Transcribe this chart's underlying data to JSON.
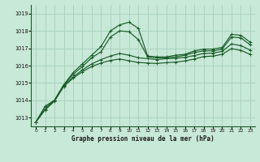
{
  "xlabel": "Graphe pression niveau de la mer (hPa)",
  "background_color": "#c8e8d8",
  "grid_color": "#aad4c0",
  "line_color": "#1a5c28",
  "ylim": [
    1012.5,
    1019.5
  ],
  "xlim": [
    -0.5,
    23.5
  ],
  "yticks": [
    1013,
    1014,
    1015,
    1016,
    1017,
    1018,
    1019
  ],
  "xticks": [
    0,
    1,
    2,
    3,
    4,
    5,
    6,
    7,
    8,
    9,
    10,
    11,
    12,
    13,
    14,
    15,
    16,
    17,
    18,
    19,
    20,
    21,
    22,
    23
  ],
  "series": [
    [
      1012.75,
      1013.65,
      1014.0,
      1014.9,
      1015.6,
      1016.1,
      1016.6,
      1017.1,
      1018.0,
      1018.35,
      1018.5,
      1018.15,
      1016.55,
      1016.5,
      1016.5,
      1016.6,
      1016.65,
      1016.85,
      1016.95,
      1016.95,
      1017.05,
      1017.8,
      1017.75,
      1017.35
    ],
    [
      1012.75,
      1013.65,
      1014.0,
      1014.9,
      1015.5,
      1015.95,
      1016.45,
      1016.8,
      1017.65,
      1018.0,
      1017.95,
      1017.5,
      1016.5,
      1016.45,
      1016.45,
      1016.5,
      1016.6,
      1016.75,
      1016.85,
      1016.85,
      1016.95,
      1017.65,
      1017.6,
      1017.2
    ],
    [
      1012.75,
      1013.5,
      1014.0,
      1014.85,
      1015.35,
      1015.75,
      1016.1,
      1016.35,
      1016.55,
      1016.7,
      1016.6,
      1016.45,
      1016.4,
      1016.35,
      1016.4,
      1016.42,
      1016.48,
      1016.58,
      1016.7,
      1016.72,
      1016.82,
      1017.25,
      1017.15,
      1016.9
    ],
    [
      1012.75,
      1013.45,
      1013.95,
      1014.8,
      1015.28,
      1015.65,
      1015.95,
      1016.15,
      1016.3,
      1016.38,
      1016.28,
      1016.18,
      1016.15,
      1016.12,
      1016.17,
      1016.2,
      1016.27,
      1016.38,
      1016.52,
      1016.55,
      1016.65,
      1016.98,
      1016.88,
      1016.65
    ]
  ]
}
